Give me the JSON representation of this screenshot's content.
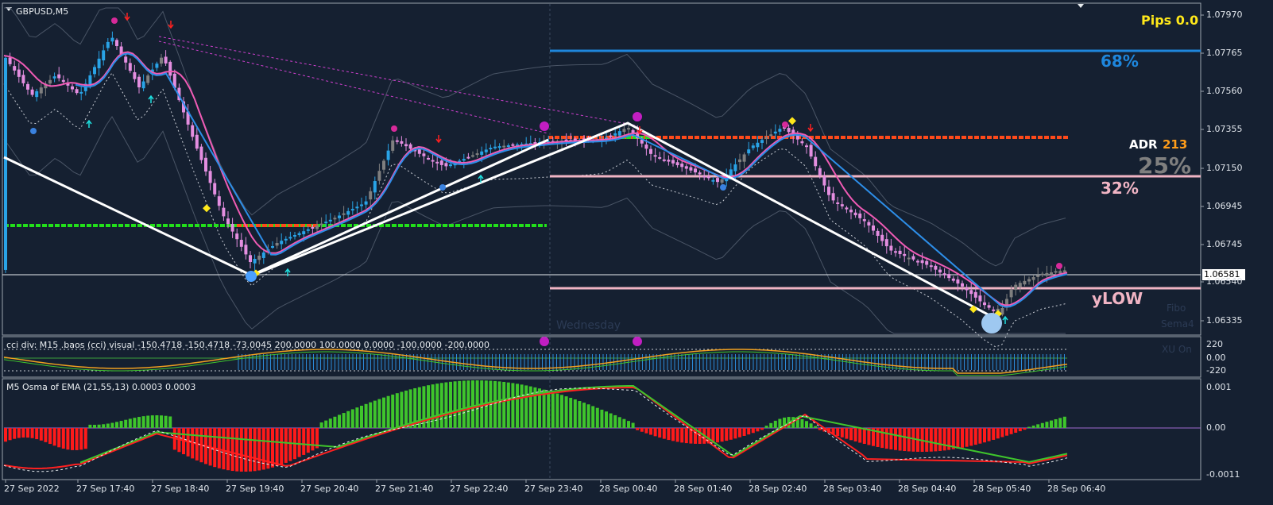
{
  "chart": {
    "symbol_title": "GBPUSD,M5",
    "pips_label": "Pips 0.0",
    "adr_label": "ADR",
    "adr_value": "213",
    "adr_pct": "25%",
    "fib_68": "68%",
    "fib_32": "32%",
    "ylow": "yLOW",
    "day_watermark": "Wednesday",
    "legend_fibo": "Fibo",
    "legend_sema": "Sema4",
    "legend_xu": "XU On",
    "current_price": "1.06581",
    "price_ticks": [
      "1.07970",
      "1.07765",
      "1.07560",
      "1.07355",
      "1.07150",
      "1.06945",
      "1.06745",
      "1.06540",
      "1.06335"
    ]
  },
  "cci_panel": {
    "title": "cci div: M15 .baos (cci) visual -150.4718 -150.4718 -73.0045 200.0000 100.0000 0.0000 -100.0000 -200.0000",
    "ticks": [
      "220",
      "0.00",
      "-220"
    ]
  },
  "osma_panel": {
    "title": "M5 Osma of EMA (21,55,13) 0.0003 0.0003",
    "ticks": [
      "0.001",
      "0.00",
      "-0.0011"
    ]
  },
  "time_axis": [
    "27 Sep 2022",
    "27 Sep 17:40",
    "27 Sep 18:40",
    "27 Sep 19:40",
    "27 Sep 20:40",
    "27 Sep 21:40",
    "27 Sep 22:40",
    "27 Sep 23:40",
    "28 Sep 00:40",
    "28 Sep 01:40",
    "28 Sep 02:40",
    "28 Sep 03:40",
    "28 Sep 04:40",
    "28 Sep 05:40",
    "28 Sep 06:40"
  ],
  "colors": {
    "background": "#152031",
    "candle_up": "#29a3e6",
    "candle_down": "#e48ee0",
    "candle_neutral": "#7f7f7f",
    "ma_pink": "#f05bb5",
    "ma_blue": "#2d8ee8",
    "fib_blue": "#1e86dc",
    "fib_pink": "#f0b4c4",
    "res_orange": "#ff4a1a",
    "sup_green": "#22e01a",
    "zigzag": "#ffffff",
    "osma_green": "#3fc52c",
    "osma_red": "#ff1a1a",
    "pips_yellow": "#ffe81a",
    "adr_orange": "#ff9d1a"
  }
}
